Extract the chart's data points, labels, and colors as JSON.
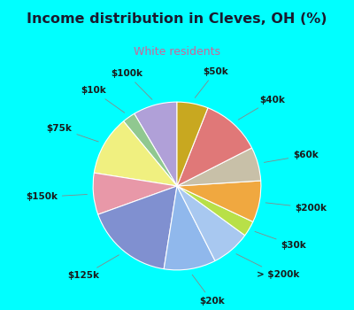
{
  "title": "Income distribution in Cleves, OH (%)",
  "subtitle": "White residents",
  "title_color": "#1a1a2e",
  "subtitle_color": "#cc6699",
  "background_outer": "#00ffff",
  "background_inner_color": "#d4ede0",
  "labels": [
    "$100k",
    "$10k",
    "$75k",
    "$150k",
    "$125k",
    "$20k",
    "> $200k",
    "$30k",
    "$200k",
    "$60k",
    "$40k",
    "$50k"
  ],
  "values": [
    8.5,
    2.5,
    11.5,
    8.0,
    17.0,
    10.0,
    7.5,
    3.0,
    8.0,
    6.5,
    11.5,
    6.0
  ],
  "colors": [
    "#b0a0d8",
    "#90c890",
    "#f0f080",
    "#e898a8",
    "#8090d0",
    "#90b8ec",
    "#a8c8f0",
    "#b8e048",
    "#f0a840",
    "#c8c0a8",
    "#e07878",
    "#c8a820"
  ],
  "label_fontsize": 7.5,
  "startangle": 90,
  "title_fontsize": 11.5,
  "subtitle_fontsize": 9
}
